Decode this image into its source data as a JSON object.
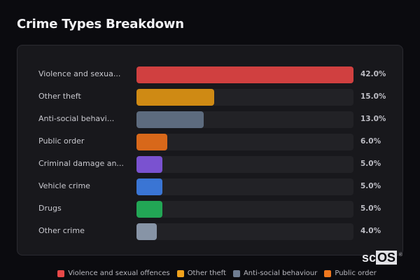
{
  "header": {
    "title": "Crime Types Breakdown"
  },
  "chart_data": {
    "type": "bar",
    "orientation": "horizontal",
    "title": "Crime Types Breakdown",
    "categories": [
      "Violence and sexual offences",
      "Other theft",
      "Anti-social behaviour",
      "Public order",
      "Criminal damage and arson",
      "Vehicle crime",
      "Drugs",
      "Other crime"
    ],
    "display_labels": [
      "Violence and sexua...",
      "Other theft",
      "Anti-social behavi...",
      "Public order",
      "Criminal damage an...",
      "Vehicle crime",
      "Drugs",
      "Other crime"
    ],
    "values": [
      42.0,
      15.0,
      13.0,
      6.0,
      5.0,
      5.0,
      5.0,
      4.0
    ],
    "value_labels": [
      "42.0%",
      "15.0%",
      "13.0%",
      "6.0%",
      "5.0%",
      "5.0%",
      "5.0%",
      "4.0%"
    ],
    "colors": [
      "#d04040",
      "#cf8a14",
      "#5d6b7e",
      "#d8681a",
      "#7a52d0",
      "#3a75d4",
      "#22a655",
      "#8794a6"
    ],
    "unit": "%",
    "xlim": [
      0,
      42
    ],
    "grid": false,
    "legend_position": "bottom",
    "legend": [
      {
        "label": "Violence and sexual offences",
        "color": "#e84848"
      },
      {
        "label": "Other theft",
        "color": "#f0a21c"
      },
      {
        "label": "Anti-social behaviour",
        "color": "#6f7d92"
      },
      {
        "label": "Public order",
        "color": "#f0781e"
      }
    ]
  },
  "rows": [
    {
      "label": "Violence and sexua...",
      "value": "42.0%",
      "pct": 100,
      "color": "#d04040"
    },
    {
      "label": "Other theft",
      "value": "15.0%",
      "pct": 35.7,
      "color": "#cf8a14"
    },
    {
      "label": "Anti-social behavi...",
      "value": "13.0%",
      "pct": 31.0,
      "color": "#5d6b7e"
    },
    {
      "label": "Public order",
      "value": "6.0%",
      "pct": 14.3,
      "color": "#d8681a"
    },
    {
      "label": "Criminal damage an...",
      "value": "5.0%",
      "pct": 11.9,
      "color": "#7a52d0"
    },
    {
      "label": "Vehicle crime",
      "value": "5.0%",
      "pct": 11.9,
      "color": "#3a75d4"
    },
    {
      "label": "Drugs",
      "value": "5.0%",
      "pct": 11.9,
      "color": "#22a655"
    },
    {
      "label": "Other crime",
      "value": "4.0%",
      "pct": 9.5,
      "color": "#8794a6"
    }
  ],
  "legend": [
    {
      "label": "Violence and sexual offences",
      "color": "#e84848"
    },
    {
      "label": "Other theft",
      "color": "#f0a21c"
    },
    {
      "label": "Anti-social behaviour",
      "color": "#6f7d92"
    },
    {
      "label": "Public order",
      "color": "#f0781e"
    }
  ],
  "logo": {
    "prefix": "sc",
    "highlight": "OS",
    "mark": "®"
  }
}
